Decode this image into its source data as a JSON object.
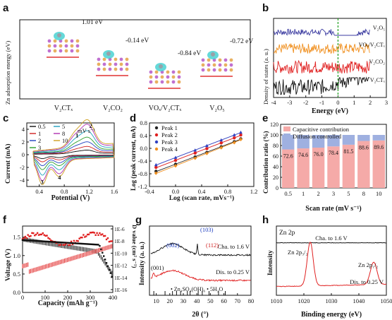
{
  "panels": [
    {
      "id": "a",
      "label": "a"
    },
    {
      "id": "b",
      "label": "b"
    },
    {
      "id": "c",
      "label": "c"
    },
    {
      "id": "d",
      "label": "d"
    },
    {
      "id": "e",
      "label": "e"
    },
    {
      "id": "f",
      "label": "f"
    },
    {
      "id": "g",
      "label": "g"
    },
    {
      "id": "h",
      "label": "h"
    }
  ],
  "chart_data": [
    {
      "panel": "a",
      "type": "bar",
      "ylabel": "Zn adsorption energy (eV)",
      "categories": [
        "V2CTx",
        "V2CO2",
        "VOx/V2CTx",
        "V2O5"
      ],
      "category_labels": [
        "V₂CTₓ",
        "V₂CO₂",
        "VOₓ/V₂CTₓ",
        "V₂O₅"
      ],
      "values": [
        1.01,
        -0.14,
        -0.84,
        -0.72
      ],
      "value_labels": [
        "1.01 eV",
        "-0.14 eV",
        "-0.84 eV",
        "-0.72 eV"
      ],
      "colors": {
        "substrate": "#e8b060",
        "atom": "#c070d0",
        "cloud": "#3fcfd0",
        "level": "#e03030"
      }
    },
    {
      "panel": "b",
      "type": "line",
      "xlabel": "Energy (eV)",
      "ylabel": "Density of states (a. u.)",
      "xlim": [
        -4,
        3
      ],
      "xticks": [
        -4,
        -3,
        -2,
        -1,
        0,
        1,
        2,
        3
      ],
      "fermi_level": 0,
      "series": [
        {
          "name": "V₂O₅",
          "color": "#3a3aa0"
        },
        {
          "name": "VOₓ/V₂CTₓ",
          "color": "#f09020"
        },
        {
          "name": "V₂CO₂",
          "color": "#e02020"
        },
        {
          "name": "V₂CTₓ",
          "color": "#111111"
        }
      ]
    },
    {
      "panel": "c",
      "type": "line",
      "xlabel": "Potential (V)",
      "ylabel": "Current (mA)",
      "xlim": [
        0.2,
        1.6
      ],
      "ylim": [
        -5,
        5
      ],
      "xticks": [
        0.4,
        0.8,
        1.2,
        1.6
      ],
      "yticks": [
        -4,
        -2,
        0,
        2,
        4
      ],
      "legend_unit": "mV s⁻¹",
      "series": [
        {
          "name": "0.5",
          "color": "#111111",
          "amp": 0.5
        },
        {
          "name": "1",
          "color": "#d02020",
          "amp": 0.9
        },
        {
          "name": "2",
          "color": "#2040c0",
          "amp": 1.4
        },
        {
          "name": "3",
          "color": "#2aa02a",
          "amp": 1.9
        },
        {
          "name": "5",
          "color": "#20a0c0",
          "amp": 2.6
        },
        {
          "name": "8",
          "color": "#b030b0",
          "amp": 3.3
        },
        {
          "name": "10",
          "color": "#d0a020",
          "amp": 3.8
        }
      ],
      "peak_labels": [
        {
          "text": "1",
          "x": 0.98,
          "y": 2.7
        },
        {
          "text": "2",
          "x": 1.2,
          "y": 4.2
        },
        {
          "text": "3",
          "x": 0.42,
          "y": -4.6
        },
        {
          "text": "4",
          "x": 0.7,
          "y": -3.9
        }
      ]
    },
    {
      "panel": "d",
      "type": "scatter",
      "xlabel": "Log (scan rate, mVs⁻¹)",
      "ylabel": "Log (peak current, mA)",
      "xlim": [
        -0.4,
        1.2
      ],
      "ylim": [
        -1.2,
        0.8
      ],
      "xticks": [
        -0.4,
        0.0,
        0.4,
        0.8,
        1.2
      ],
      "yticks": [
        -1.2,
        -0.8,
        -0.4,
        0.0,
        0.4,
        0.8
      ],
      "x": [
        -0.3,
        0,
        0.3,
        0.48,
        0.7,
        0.9,
        1.0
      ],
      "series": [
        {
          "name": "Peak 1",
          "color": "#222222",
          "y": [
            -0.72,
            -0.5,
            -0.27,
            -0.13,
            0.05,
            0.21,
            0.3
          ],
          "marker": "circle"
        },
        {
          "name": "Peak 2",
          "color": "#e02020",
          "y": [
            -0.6,
            -0.38,
            -0.15,
            -0.01,
            0.17,
            0.33,
            0.42
          ],
          "marker": "circle"
        },
        {
          "name": "Peak 3",
          "color": "#3040c0",
          "y": [
            -0.52,
            -0.29,
            -0.06,
            0.08,
            0.26,
            0.42,
            0.5
          ],
          "marker": "triangle"
        },
        {
          "name": "Peak 4",
          "color": "#f09020",
          "y": [
            -0.78,
            -0.55,
            -0.31,
            -0.16,
            0.02,
            0.18,
            0.28
          ],
          "marker": "diamond"
        }
      ]
    },
    {
      "panel": "e",
      "type": "bar",
      "xlabel": "Scan rate (mV s⁻¹)",
      "ylabel": "Contribution ratio (%)",
      "categories": [
        "0.5",
        "1",
        "2",
        "3",
        "5",
        "8",
        "10"
      ],
      "ylim": [
        0,
        120
      ],
      "yticks": [
        0,
        20,
        40,
        60,
        80,
        100,
        120
      ],
      "series": [
        {
          "name": "Capacitive contribution",
          "color": "#f5aaa8",
          "values": [
            72.6,
            74.6,
            76.0,
            78.4,
            81.5,
            88.6,
            89.6
          ]
        },
        {
          "name": "Diffusion controlled",
          "color": "#9fb0e0",
          "values": [
            27.4,
            25.4,
            24.0,
            21.6,
            18.5,
            11.4,
            10.4
          ]
        }
      ],
      "value_labels": [
        "72.6",
        "74.6",
        "76.0",
        "78.4",
        "81.5",
        "88.6",
        "89.6"
      ]
    },
    {
      "panel": "f",
      "type": "scatter",
      "xlabel": "Capacity (mAh g⁻¹)",
      "ylabel": "Voltage (V)",
      "ylabel_right": "D value (cm² s⁻¹)",
      "xlim": [
        0,
        400
      ],
      "ylim": [
        0.0,
        1.8
      ],
      "xticks": [
        0,
        100,
        200,
        300,
        400
      ],
      "yticks": [
        0.0,
        0.5,
        1.0,
        1.5
      ],
      "right_ticks": [
        "1E-6",
        "1E-8",
        "1E-10",
        "1E-12",
        "1E-14",
        "1E-16"
      ]
    },
    {
      "panel": "g",
      "type": "line",
      "xlabel": "2θ (°)",
      "ylabel": "Intensity (a. u.)",
      "xlim": [
        5,
        80
      ],
      "xticks": [
        10,
        20,
        30,
        40,
        50,
        60,
        70,
        80
      ],
      "series": [
        {
          "name": "Cha. to 1.6 V",
          "color": "#111111"
        },
        {
          "name": "Dis. to 0.25 V",
          "color": "#e02020"
        }
      ],
      "reference": "Zn₄SO₄(OH)₆ • 5H₂O",
      "annotations": [
        "(001)",
        "(002)",
        "(103)",
        "(112)"
      ]
    },
    {
      "panel": "h",
      "type": "line",
      "xlabel": "Binding energy (eV)",
      "ylabel": "Intensity",
      "title": "Zn 2p",
      "xlim": [
        1010,
        1050
      ],
      "xticks": [
        1010,
        1020,
        1030,
        1040,
        1050
      ],
      "series": [
        {
          "name": "Cha. to 1.6 V",
          "color": "#111111"
        },
        {
          "name": "Dis. to 0.25 V",
          "color": "#e02020"
        }
      ],
      "peak_labels": [
        "Zn 2p₃/₂",
        "Zn 2p₁/₂"
      ]
    }
  ]
}
